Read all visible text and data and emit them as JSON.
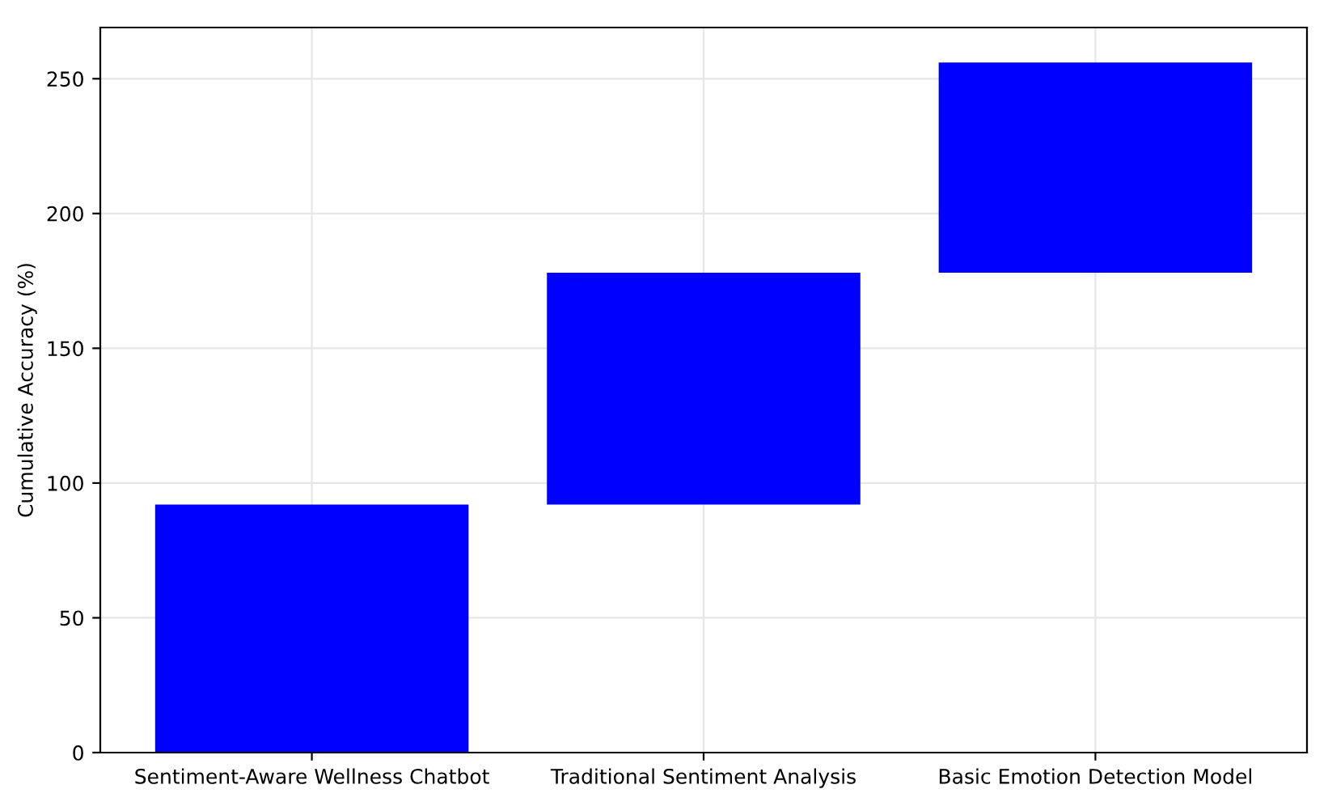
{
  "chart_data": {
    "type": "bar",
    "ylabel": "Cumulative Accuracy (%)",
    "categories": [
      "Sentiment-Aware Wellness Chatbot",
      "Traditional Sentiment Analysis",
      "Basic Emotion Detection Model"
    ],
    "values": [
      92,
      86,
      78
    ],
    "base": [
      0,
      92,
      178
    ],
    "color": "#0000ff",
    "ylim": [
      0,
      269
    ],
    "yticks": [
      0,
      50,
      100,
      150,
      200,
      250
    ],
    "grid": true
  }
}
